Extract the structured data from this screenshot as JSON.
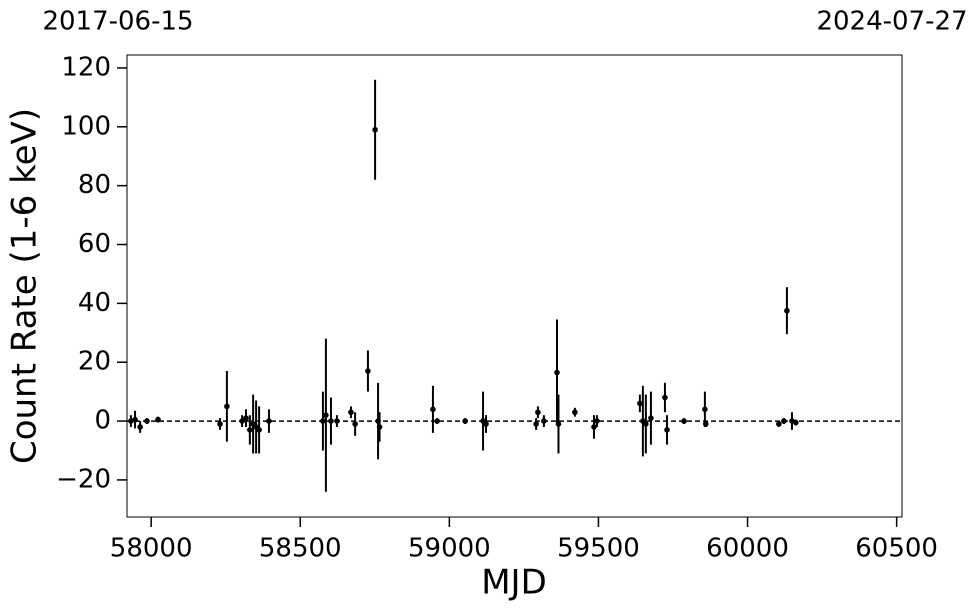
{
  "chart_data": {
    "type": "errorbar",
    "top_labels": [
      "2017-06-15",
      "2024-07-27"
    ],
    "xlabel": "MJD",
    "ylabel": "Count Rate (1-6 keV)",
    "xlim": [
      57919,
      60518
    ],
    "xticks": [
      58000,
      58500,
      59000,
      59500,
      60000,
      60500
    ],
    "ylim": [
      -32.6,
      124.4
    ],
    "yticks": [
      {
        "value": -20,
        "label": "−20"
      },
      0,
      20,
      40,
      60,
      80,
      100,
      120
    ],
    "hline": 0,
    "color": "#000000",
    "x": [
      57932,
      57946,
      57963,
      57986,
      58023,
      58231,
      58254,
      58305,
      58318,
      58331,
      58342,
      58352,
      58362,
      58395,
      58576,
      58586,
      58603,
      58623,
      58670,
      58684,
      58727,
      58751,
      58761,
      58766,
      58945,
      58959,
      59053,
      59113,
      59123,
      59291,
      59297,
      59317,
      59361,
      59366,
      59421,
      59485,
      59495,
      59639,
      59649,
      59659,
      59676,
      59723,
      59730,
      59787,
      59857,
      59860,
      60105,
      60122,
      60132,
      60149,
      60162
    ],
    "values": [
      0,
      0.5,
      -2,
      0,
      0.5,
      -1,
      5,
      0,
      1,
      -3,
      -1,
      -2,
      -3,
      0,
      0,
      2,
      0,
      0,
      3,
      -1,
      17,
      99,
      0,
      -2,
      4,
      0,
      0,
      0,
      -1,
      -1,
      3,
      0,
      16.5,
      -1,
      3,
      -2,
      0,
      6,
      0,
      -1,
      1,
      8,
      -3,
      0,
      4,
      -1,
      -1,
      0,
      37.5,
      0,
      -0.5
    ],
    "errors": [
      2,
      3,
      2,
      1,
      1,
      2,
      12,
      2,
      3,
      5,
      10,
      9,
      8,
      4,
      10,
      26,
      8,
      2,
      2,
      4,
      7,
      17,
      13,
      5,
      8,
      1,
      1,
      10,
      3,
      2,
      2,
      2,
      18,
      10,
      1.5,
      4,
      2,
      3,
      12,
      10,
      9,
      5,
      5,
      1,
      6,
      1,
      1,
      1,
      8,
      3,
      1
    ]
  }
}
